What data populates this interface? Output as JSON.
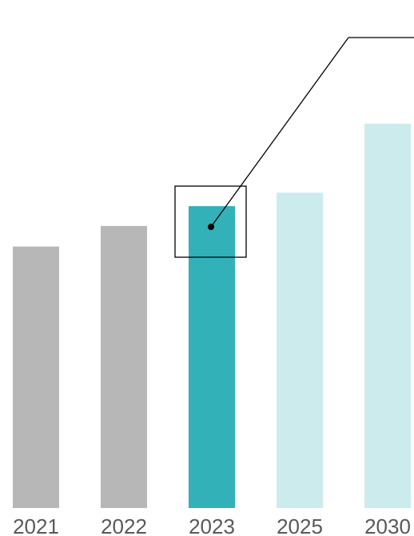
{
  "chart_data": {
    "type": "bar",
    "title": "",
    "xlabel": "",
    "ylabel": "",
    "categories": [
      "2021",
      "2022",
      "2023",
      "2025",
      "2030"
    ],
    "values": [
      330,
      356,
      381,
      398,
      485
    ],
    "ylim": [
      0,
      500
    ],
    "grid": false,
    "legend": "none",
    "bar_colors": [
      "#b7b7b7",
      "#b7b7b7",
      "#32b1b9",
      "#cbebec",
      "#cbebec"
    ],
    "highlight": {
      "category": "2023",
      "marker": "boxed-dot",
      "callout": "leader-line-to-top-right"
    },
    "colors": {
      "past": "#b7b7b7",
      "current": "#32b1b9",
      "forecast": "#cbebec",
      "label": "#595959",
      "callout": "#000000"
    }
  }
}
